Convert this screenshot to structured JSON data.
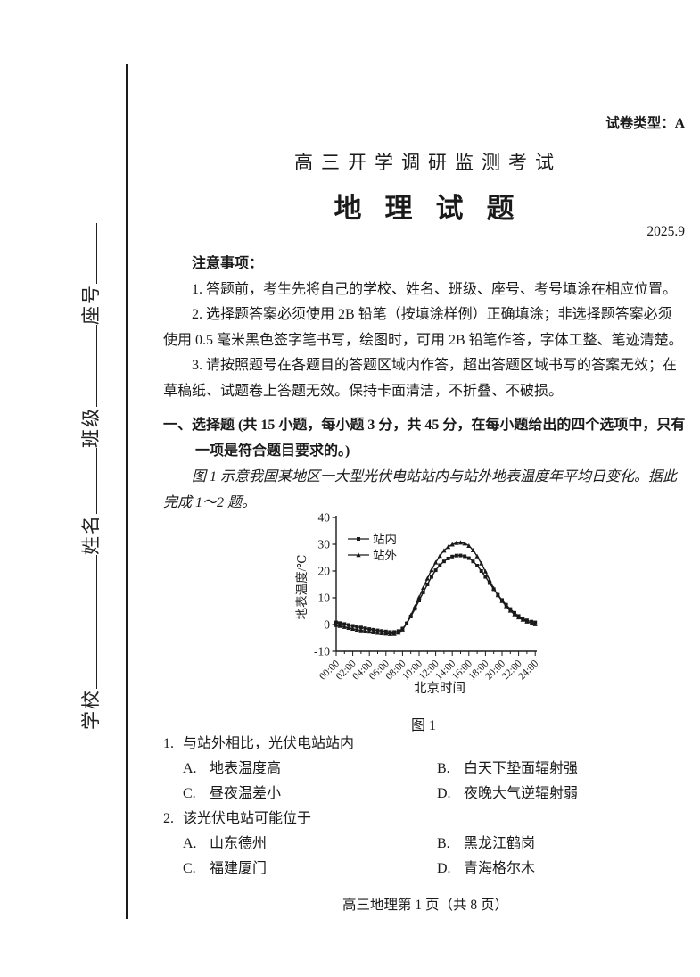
{
  "header": {
    "paper_type": "试卷类型：A",
    "exam_title": "高三开学调研监测考试",
    "subject_title": "地理试题",
    "date": "2025.9"
  },
  "sidebar": {
    "fields": [
      {
        "label": "学校"
      },
      {
        "label": "姓名"
      },
      {
        "label": "班级"
      },
      {
        "label": "座号"
      }
    ]
  },
  "notes": {
    "heading": "注意事项：",
    "items": [
      "1. 答题前，考生先将自己的学校、姓名、班级、座号、考号填涂在相应位置。",
      "2. 选择题答案必须使用 2B 铅笔（按填涂样例）正确填涂；非选择题答案必须使用 0.5 毫米黑色签字笔书写，绘图时，可用 2B 铅笔作答，字体工整、笔迹清楚。",
      "3. 请按照题号在各题目的答题区域内作答，超出答题区域书写的答案无效；在草稿纸、试题卷上答题无效。保持卡面清洁，不折叠、不破损。"
    ]
  },
  "section": {
    "heading": "一、选择题 (共 15 小题，每小题 3 分，共 45 分，在每小题给出的四个选项中，只有一项是符合题目要求的。)",
    "intro": "图 1 示意我国某地区一大型光伏电站站内与站外地表温度年平均日变化。据此完成 1～2 题。"
  },
  "chart_data": {
    "type": "line",
    "xlabel": "北京时间",
    "ylabel": "地表温度/℃",
    "ylim": [
      -10,
      40
    ],
    "yticks": [
      40,
      30,
      20,
      10,
      0,
      -10
    ],
    "x_hours_range": [
      0,
      24
    ],
    "xtick_labels": [
      "00:00",
      "02:00",
      "04:00",
      "06:00",
      "08:00",
      "10:00",
      "12:00",
      "14:00",
      "16:00",
      "18:00",
      "20:00",
      "22:00",
      "24:00"
    ],
    "legend_position": "upper-left-inside",
    "grid": false,
    "caption": "图 1",
    "series": [
      {
        "name": "站内",
        "marker": "square",
        "hours": [
          0,
          1,
          2,
          3,
          4,
          5,
          6,
          7,
          8,
          9,
          10,
          11,
          12,
          13,
          14,
          15,
          16,
          17,
          18,
          19,
          20,
          21,
          22,
          23,
          24
        ],
        "values": [
          0.8,
          0.2,
          -0.5,
          -1.1,
          -1.7,
          -2.2,
          -2.6,
          -2.8,
          -1.5,
          3.0,
          9.0,
          15.0,
          20.3,
          23.6,
          25.4,
          25.8,
          24.8,
          22.0,
          17.8,
          13.2,
          9.2,
          5.8,
          3.2,
          1.6,
          0.8
        ]
      },
      {
        "name": "站外",
        "marker": "triangle",
        "hours": [
          0,
          1,
          2,
          3,
          4,
          5,
          6,
          7,
          8,
          9,
          10,
          11,
          12,
          13,
          14,
          15,
          16,
          17,
          18,
          19,
          20,
          21,
          22,
          23,
          24
        ],
        "values": [
          -0.2,
          -0.9,
          -1.6,
          -2.2,
          -2.7,
          -3.1,
          -3.4,
          -3.5,
          -1.9,
          3.5,
          10.2,
          17.2,
          23.2,
          27.6,
          29.9,
          30.6,
          29.4,
          25.5,
          19.8,
          13.5,
          8.8,
          5.2,
          2.7,
          1.1,
          0.1
        ]
      }
    ]
  },
  "questions": [
    {
      "number": "1.",
      "stem": "与站外相比，光伏电站站内",
      "options": [
        {
          "key": "A.",
          "text": "地表温度高"
        },
        {
          "key": "B.",
          "text": "白天下垫面辐射强"
        },
        {
          "key": "C.",
          "text": "昼夜温差小"
        },
        {
          "key": "D.",
          "text": "夜晚大气逆辐射弱"
        }
      ]
    },
    {
      "number": "2.",
      "stem": "该光伏电站可能位于",
      "options": [
        {
          "key": "A.",
          "text": "山东德州"
        },
        {
          "key": "B.",
          "text": "黑龙江鹤岗"
        },
        {
          "key": "C.",
          "text": "福建厦门"
        },
        {
          "key": "D.",
          "text": "青海格尔木"
        }
      ]
    }
  ],
  "footer": {
    "text": "高三地理第 1 页（共 8 页）"
  },
  "colors": {
    "ink": "#1a1a1a",
    "paper": "#ffffff"
  }
}
